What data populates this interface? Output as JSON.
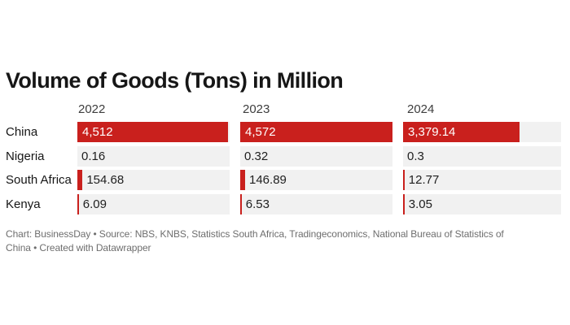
{
  "chart": {
    "title": "Volume of Goods (Tons) in Million",
    "footer_line1": "Chart: BusinessDay • Source: NBS, KNBS, Statistics South Africa, Tradingeconomics, National Bureau of Statistics of",
    "footer_line2": "China • Created with Datawrapper"
  },
  "chart_data": {
    "type": "bar",
    "orientation": "horizontal",
    "title": "Volume of Goods (Tons) in Million",
    "categories": [
      "2022",
      "2023",
      "2024"
    ],
    "series": [
      {
        "name": "China",
        "values": [
          4512,
          4572,
          3379.14
        ],
        "labels": [
          "4,512",
          "4,572",
          "3,379.14"
        ]
      },
      {
        "name": "Nigeria",
        "values": [
          0.16,
          0.32,
          0.3
        ],
        "labels": [
          "0.16",
          "0.32",
          "0.3"
        ]
      },
      {
        "name": "South Africa",
        "values": [
          154.68,
          146.89,
          12.77
        ],
        "labels": [
          "154.68",
          "146.89",
          "12.77"
        ]
      },
      {
        "name": "Kenya",
        "values": [
          6.09,
          6.53,
          3.05
        ],
        "labels": [
          "6.09",
          "6.53",
          "3.05"
        ]
      }
    ],
    "xlim": [
      0,
      4572
    ],
    "grid": "off",
    "legend": "none",
    "bar_color": "#c9201d",
    "track_color": "#f1f1f1",
    "source_note": "Chart: BusinessDay • Source: NBS, KNBS, Statistics South Africa, Tradingeconomics, National Bureau of Statistics of China • Created with Datawrapper"
  }
}
